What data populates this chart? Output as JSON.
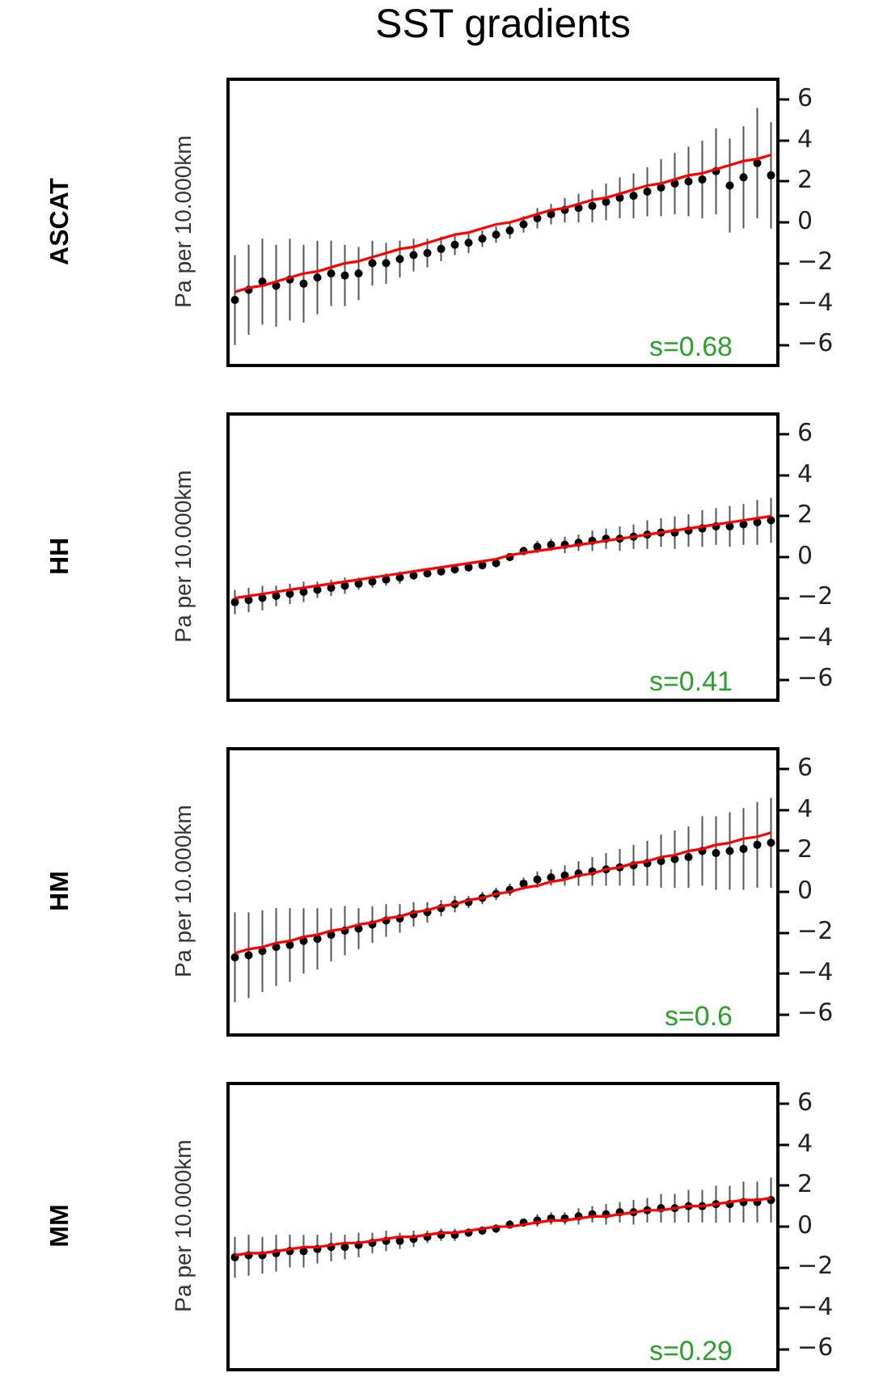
{
  "chart_data": [
    {
      "type": "scatter",
      "title": "SST gradients",
      "subtitle": "ASCAT",
      "ylabel": "Pa per 10.000km",
      "annotations": [
        "s=0.68"
      ],
      "categories": [
        null,
        null,
        null,
        null,
        null,
        null,
        null,
        null,
        null,
        null,
        null,
        null,
        null,
        null,
        null,
        null,
        null,
        null,
        null,
        null,
        null,
        null,
        null,
        null,
        null,
        null,
        null,
        null,
        null,
        null,
        null,
        null,
        null,
        null,
        null,
        null,
        null,
        null,
        null,
        null
      ],
      "ylim": [
        -7,
        7
      ],
      "yticks": [
        -6,
        -4,
        -2,
        0,
        2,
        4,
        6
      ],
      "tick_labels": "y",
      "marker": "circle",
      "grid": false,
      "legend": false,
      "series": [
        {
          "type": "scatter",
          "color": "#000000",
          "values": [
            -3.8,
            -3.3,
            -2.9,
            -3.1,
            -2.8,
            -3.0,
            -2.7,
            -2.5,
            -2.6,
            -2.5,
            -2.0,
            -2.0,
            -1.8,
            -1.6,
            -1.5,
            -1.3,
            -1.1,
            -1.0,
            -0.8,
            -0.6,
            -0.4,
            -0.1,
            0.2,
            0.4,
            0.6,
            0.7,
            0.8,
            1.0,
            1.2,
            1.3,
            1.5,
            1.7,
            1.9,
            2.0,
            2.1,
            2.5,
            1.8,
            2.2,
            2.9,
            2.3
          ],
          "errors": [
            2.2,
            2.2,
            2.1,
            2.0,
            2.0,
            1.9,
            1.8,
            1.6,
            1.5,
            1.3,
            1.1,
            1.0,
            0.9,
            0.8,
            0.7,
            0.6,
            0.5,
            0.5,
            0.4,
            0.4,
            0.4,
            0.4,
            0.5,
            0.5,
            0.6,
            0.7,
            0.8,
            0.9,
            1.0,
            1.1,
            1.2,
            1.4,
            1.5,
            1.7,
            1.9,
            2.1,
            2.3,
            2.5,
            2.7,
            2.6
          ]
        },
        {
          "type": "line",
          "marker": "none",
          "color": "#ff0000",
          "values": [
            -3.4,
            -3.2,
            -3.1,
            -2.9,
            -2.7,
            -2.5,
            -2.4,
            -2.2,
            -2.0,
            -1.9,
            -1.7,
            -1.5,
            -1.3,
            -1.2,
            -1.0,
            -0.8,
            -0.6,
            -0.5,
            -0.3,
            -0.1,
            0.0,
            0.2,
            0.4,
            0.6,
            0.7,
            0.9,
            1.1,
            1.2,
            1.4,
            1.6,
            1.8,
            1.9,
            2.1,
            2.3,
            2.4,
            2.6,
            2.8,
            3.0,
            3.1,
            3.3
          ]
        }
      ]
    },
    {
      "type": "scatter",
      "subtitle": "HH",
      "ylabel": "Pa per 10.000km",
      "annotations": [
        "s=0.41"
      ],
      "categories": [
        null,
        null,
        null,
        null,
        null,
        null,
        null,
        null,
        null,
        null,
        null,
        null,
        null,
        null,
        null,
        null,
        null,
        null,
        null,
        null,
        null,
        null,
        null,
        null,
        null,
        null,
        null,
        null,
        null,
        null,
        null,
        null,
        null,
        null,
        null,
        null,
        null,
        null,
        null,
        null
      ],
      "ylim": [
        -7,
        7
      ],
      "yticks": [
        -6,
        -4,
        -2,
        0,
        2,
        4,
        6
      ],
      "tick_labels": "y",
      "marker": "circle",
      "grid": false,
      "legend": false,
      "series": [
        {
          "type": "scatter",
          "color": "#000000",
          "values": [
            -2.2,
            -2.1,
            -2.0,
            -1.9,
            -1.8,
            -1.7,
            -1.6,
            -1.5,
            -1.4,
            -1.3,
            -1.2,
            -1.1,
            -1.0,
            -0.9,
            -0.8,
            -0.7,
            -0.6,
            -0.5,
            -0.4,
            -0.3,
            0.0,
            0.3,
            0.5,
            0.6,
            0.6,
            0.7,
            0.8,
            0.9,
            0.9,
            1.0,
            1.1,
            1.2,
            1.2,
            1.3,
            1.4,
            1.5,
            1.5,
            1.6,
            1.7,
            1.8
          ],
          "errors": [
            0.6,
            0.6,
            0.6,
            0.5,
            0.5,
            0.5,
            0.4,
            0.4,
            0.4,
            0.3,
            0.3,
            0.3,
            0.3,
            0.2,
            0.2,
            0.2,
            0.2,
            0.2,
            0.2,
            0.2,
            0.2,
            0.2,
            0.3,
            0.3,
            0.4,
            0.4,
            0.5,
            0.5,
            0.6,
            0.6,
            0.7,
            0.7,
            0.8,
            0.8,
            0.9,
            0.9,
            1.0,
            1.0,
            1.1,
            1.1
          ]
        },
        {
          "type": "line",
          "marker": "none",
          "color": "#ff0000",
          "values": [
            -2.0,
            -1.9,
            -1.8,
            -1.7,
            -1.6,
            -1.5,
            -1.4,
            -1.3,
            -1.2,
            -1.1,
            -1.0,
            -0.9,
            -0.8,
            -0.7,
            -0.6,
            -0.5,
            -0.4,
            -0.3,
            -0.2,
            -0.1,
            0.1,
            0.2,
            0.3,
            0.4,
            0.5,
            0.6,
            0.7,
            0.8,
            0.9,
            1.0,
            1.1,
            1.2,
            1.3,
            1.4,
            1.5,
            1.6,
            1.7,
            1.8,
            1.9,
            2.0
          ]
        }
      ]
    },
    {
      "type": "scatter",
      "subtitle": "HM",
      "ylabel": "Pa per 10.000km",
      "annotations": [
        "s=0.6"
      ],
      "categories": [
        null,
        null,
        null,
        null,
        null,
        null,
        null,
        null,
        null,
        null,
        null,
        null,
        null,
        null,
        null,
        null,
        null,
        null,
        null,
        null,
        null,
        null,
        null,
        null,
        null,
        null,
        null,
        null,
        null,
        null,
        null,
        null,
        null,
        null,
        null,
        null,
        null,
        null,
        null,
        null
      ],
      "ylim": [
        -7,
        7
      ],
      "yticks": [
        -6,
        -4,
        -2,
        0,
        2,
        4,
        6
      ],
      "tick_labels": "y",
      "marker": "circle",
      "grid": false,
      "legend": false,
      "series": [
        {
          "type": "scatter",
          "color": "#000000",
          "values": [
            -3.2,
            -3.1,
            -2.9,
            -2.7,
            -2.6,
            -2.4,
            -2.3,
            -2.1,
            -1.9,
            -1.8,
            -1.6,
            -1.4,
            -1.3,
            -1.1,
            -1.0,
            -0.8,
            -0.6,
            -0.5,
            -0.3,
            -0.1,
            0.1,
            0.4,
            0.6,
            0.7,
            0.8,
            0.9,
            1.0,
            1.1,
            1.2,
            1.3,
            1.4,
            1.5,
            1.6,
            1.7,
            2.0,
            1.9,
            2.0,
            2.1,
            2.3,
            2.4
          ],
          "errors": [
            2.2,
            2.1,
            2.0,
            1.9,
            1.8,
            1.6,
            1.5,
            1.3,
            1.2,
            1.0,
            0.9,
            0.8,
            0.7,
            0.6,
            0.5,
            0.4,
            0.4,
            0.3,
            0.3,
            0.3,
            0.3,
            0.3,
            0.4,
            0.4,
            0.5,
            0.6,
            0.7,
            0.8,
            0.9,
            1.0,
            1.1,
            1.3,
            1.4,
            1.5,
            1.7,
            1.8,
            1.9,
            2.0,
            2.1,
            2.2
          ]
        },
        {
          "type": "line",
          "marker": "none",
          "color": "#ff0000",
          "values": [
            -3.0,
            -2.8,
            -2.7,
            -2.5,
            -2.4,
            -2.2,
            -2.1,
            -1.9,
            -1.8,
            -1.6,
            -1.5,
            -1.3,
            -1.2,
            -1.0,
            -0.9,
            -0.7,
            -0.6,
            -0.4,
            -0.3,
            -0.1,
            0.0,
            0.2,
            0.3,
            0.5,
            0.6,
            0.8,
            0.9,
            1.1,
            1.2,
            1.4,
            1.5,
            1.7,
            1.8,
            2.0,
            2.1,
            2.3,
            2.4,
            2.6,
            2.7,
            2.9
          ]
        }
      ]
    },
    {
      "type": "scatter",
      "subtitle": "MM",
      "ylabel": "Pa per 10.000km",
      "annotations": [
        "s=0.29"
      ],
      "categories": [
        null,
        null,
        null,
        null,
        null,
        null,
        null,
        null,
        null,
        null,
        null,
        null,
        null,
        null,
        null,
        null,
        null,
        null,
        null,
        null,
        null,
        null,
        null,
        null,
        null,
        null,
        null,
        null,
        null,
        null,
        null,
        null,
        null,
        null,
        null,
        null,
        null,
        null,
        null,
        null
      ],
      "ylim": [
        -7,
        7
      ],
      "yticks": [
        -6,
        -4,
        -2,
        0,
        2,
        4,
        6
      ],
      "tick_labels": "y",
      "marker": "circle",
      "grid": false,
      "legend": false,
      "series": [
        {
          "type": "scatter",
          "color": "#000000",
          "values": [
            -1.5,
            -1.4,
            -1.4,
            -1.3,
            -1.2,
            -1.2,
            -1.1,
            -1.0,
            -1.0,
            -0.9,
            -0.8,
            -0.7,
            -0.7,
            -0.6,
            -0.5,
            -0.4,
            -0.4,
            -0.3,
            -0.2,
            -0.1,
            0.1,
            0.2,
            0.3,
            0.4,
            0.4,
            0.5,
            0.6,
            0.6,
            0.7,
            0.7,
            0.8,
            0.9,
            0.9,
            1.0,
            1.0,
            1.1,
            1.1,
            1.2,
            1.2,
            1.3
          ],
          "errors": [
            1.0,
            1.0,
            0.9,
            0.9,
            0.8,
            0.8,
            0.7,
            0.7,
            0.6,
            0.6,
            0.5,
            0.5,
            0.4,
            0.4,
            0.3,
            0.3,
            0.3,
            0.2,
            0.2,
            0.2,
            0.2,
            0.2,
            0.3,
            0.3,
            0.3,
            0.4,
            0.4,
            0.5,
            0.5,
            0.6,
            0.6,
            0.7,
            0.7,
            0.8,
            0.8,
            0.9,
            0.9,
            1.0,
            1.0,
            1.1
          ]
        },
        {
          "type": "line",
          "marker": "none",
          "color": "#ff0000",
          "values": [
            -1.4,
            -1.3,
            -1.3,
            -1.2,
            -1.1,
            -1.0,
            -1.0,
            -0.9,
            -0.8,
            -0.8,
            -0.7,
            -0.6,
            -0.5,
            -0.5,
            -0.4,
            -0.3,
            -0.3,
            -0.2,
            -0.1,
            0.0,
            0.0,
            0.1,
            0.2,
            0.3,
            0.3,
            0.4,
            0.5,
            0.5,
            0.6,
            0.7,
            0.8,
            0.8,
            0.9,
            1.0,
            1.0,
            1.1,
            1.2,
            1.3,
            1.3,
            1.4
          ]
        }
      ]
    }
  ]
}
